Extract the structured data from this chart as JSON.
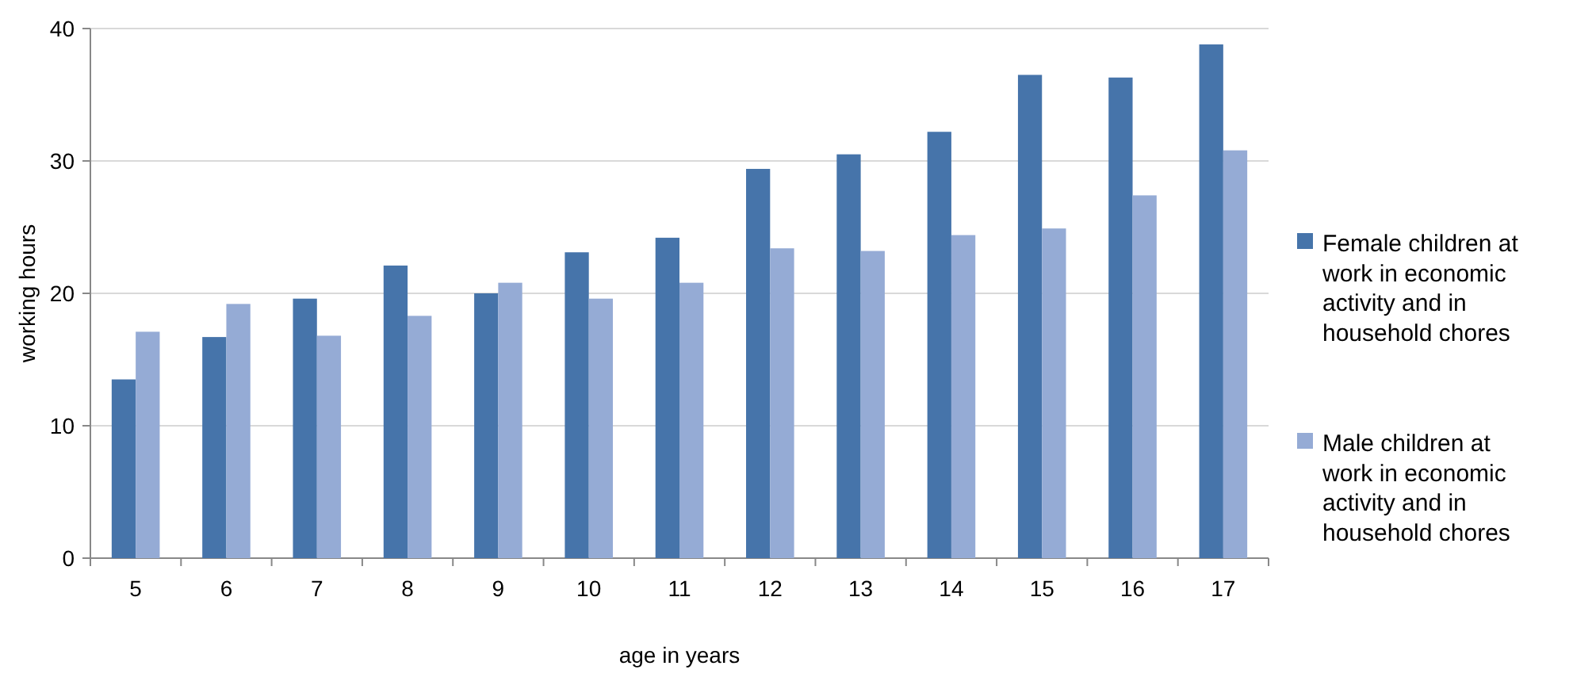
{
  "chart_data": {
    "type": "bar",
    "xlabel": "age in years",
    "ylabel": "working hours",
    "categories": [
      "5",
      "6",
      "7",
      "8",
      "9",
      "10",
      "11",
      "12",
      "13",
      "14",
      "15",
      "16",
      "17"
    ],
    "series": [
      {
        "name": "Female children at work in economic activity and in household chores",
        "color": "#4674aa",
        "values": [
          13.5,
          16.7,
          19.6,
          22.1,
          20.0,
          23.1,
          24.2,
          29.4,
          30.5,
          32.2,
          36.5,
          36.3,
          38.8
        ]
      },
      {
        "name": "Male children at work in economic activity and in household chores",
        "color": "#95abd5",
        "values": [
          17.1,
          19.2,
          16.8,
          18.3,
          20.8,
          19.6,
          20.8,
          23.4,
          23.2,
          24.4,
          24.9,
          27.4,
          30.8
        ]
      }
    ],
    "ylim": [
      0,
      40
    ],
    "yticks": [
      0,
      10,
      20,
      30,
      40
    ],
    "grid": "y",
    "legend": "right"
  }
}
